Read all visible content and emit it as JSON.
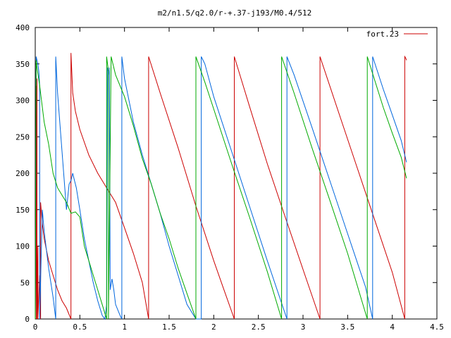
{
  "chart_data": {
    "type": "line",
    "title": "m2/n1.5/q2.0/r-+.37-j193/M0.4/512",
    "xlabel": "",
    "ylabel": "",
    "xlim": [
      0,
      4.5
    ],
    "ylim": [
      0,
      400
    ],
    "x_ticks": [
      {
        "value": 0,
        "label": "0"
      },
      {
        "value": 0.5,
        "label": "0.5"
      },
      {
        "value": 1,
        "label": "1"
      },
      {
        "value": 1.5,
        "label": "1.5"
      },
      {
        "value": 2,
        "label": "2"
      },
      {
        "value": 2.5,
        "label": "2.5"
      },
      {
        "value": 3,
        "label": "3"
      },
      {
        "value": 3.5,
        "label": "3.5"
      },
      {
        "value": 4,
        "label": "4"
      },
      {
        "value": 4.5,
        "label": "4.5"
      }
    ],
    "y_ticks": [
      {
        "value": 0,
        "label": "0"
      },
      {
        "value": 50,
        "label": "50"
      },
      {
        "value": 100,
        "label": "100"
      },
      {
        "value": 150,
        "label": "150"
      },
      {
        "value": 200,
        "label": "200"
      },
      {
        "value": 250,
        "label": "250"
      },
      {
        "value": 300,
        "label": "300"
      },
      {
        "value": 350,
        "label": "350"
      },
      {
        "value": 400,
        "label": "400"
      }
    ],
    "grid": false,
    "legend": {
      "position": "top-right",
      "entries": [
        {
          "label": "fort.23",
          "color": "#cc0000"
        }
      ]
    },
    "series": [
      {
        "name": "fort.23",
        "color": "#cc0000",
        "x": [
          0.0,
          0.01,
          0.01,
          0.02,
          0.02,
          0.03,
          0.03,
          0.05,
          0.06,
          0.06,
          0.08,
          0.1,
          0.15,
          0.2,
          0.25,
          0.3,
          0.35,
          0.4,
          0.4,
          0.42,
          0.45,
          0.5,
          0.6,
          0.7,
          0.8,
          0.9,
          1.0,
          1.1,
          1.2,
          1.27,
          1.27,
          1.4,
          1.6,
          1.8,
          2.0,
          2.1,
          2.23,
          2.23,
          2.4,
          2.6,
          2.8,
          3.0,
          3.19,
          3.19,
          3.4,
          3.6,
          3.8,
          4.0,
          4.14,
          4.14,
          4.15,
          4.16
        ],
        "y": [
          0,
          320,
          0,
          330,
          0,
          100,
          0,
          60,
          0,
          160,
          130,
          110,
          80,
          60,
          40,
          25,
          15,
          0,
          365,
          310,
          285,
          260,
          225,
          200,
          180,
          160,
          125,
          90,
          50,
          0,
          360,
          310,
          235,
          155,
          80,
          45,
          0,
          360,
          292,
          213,
          140,
          68,
          0,
          360,
          283,
          210,
          137,
          64,
          0,
          360,
          358,
          355
        ]
      },
      {
        "name": "",
        "color": "#0066dd",
        "x": [
          0.0,
          0.01,
          0.02,
          0.03,
          0.04,
          0.05,
          0.05,
          0.08,
          0.1,
          0.15,
          0.2,
          0.23,
          0.23,
          0.25,
          0.3,
          0.35,
          0.38,
          0.4,
          0.42,
          0.44,
          0.46,
          0.5,
          0.55,
          0.6,
          0.65,
          0.7,
          0.75,
          0.78,
          0.8,
          0.81,
          0.83,
          0.83,
          0.84,
          0.86,
          0.88,
          0.9,
          0.95,
          0.97,
          0.97,
          1.0,
          1.05,
          1.1,
          1.2,
          1.3,
          1.4,
          1.5,
          1.6,
          1.7,
          1.8,
          1.86,
          1.86,
          1.9,
          2.0,
          2.2,
          2.4,
          2.6,
          2.82,
          2.82,
          2.9,
          3.1,
          3.3,
          3.5,
          3.7,
          3.78,
          3.78,
          3.9,
          4.0,
          4.1,
          4.16
        ],
        "y": [
          0,
          360,
          355,
          350,
          340,
          320,
          0,
          150,
          120,
          70,
          30,
          0,
          360,
          310,
          230,
          150,
          185,
          190,
          200,
          190,
          180,
          150,
          110,
          80,
          50,
          25,
          5,
          0,
          20,
          345,
          335,
          345,
          40,
          55,
          40,
          20,
          5,
          0,
          360,
          330,
          300,
          270,
          225,
          185,
          145,
          100,
          60,
          20,
          0,
          0,
          360,
          350,
          305,
          230,
          155,
          80,
          0,
          360,
          335,
          263,
          190,
          117,
          44,
          0,
          360,
          315,
          280,
          245,
          215
        ]
      },
      {
        "name": "",
        "color": "#00aa00",
        "x": [
          0.0,
          0.01,
          0.02,
          0.05,
          0.1,
          0.15,
          0.2,
          0.25,
          0.3,
          0.35,
          0.4,
          0.45,
          0.5,
          0.55,
          0.6,
          0.65,
          0.7,
          0.75,
          0.8,
          0.8,
          0.82,
          0.82,
          0.85,
          0.9,
          1.0,
          1.1,
          1.2,
          1.3,
          1.4,
          1.5,
          1.6,
          1.7,
          1.8,
          1.8,
          1.9,
          2.0,
          2.2,
          2.4,
          2.6,
          2.76,
          2.76,
          2.9,
          3.1,
          3.3,
          3.5,
          3.72,
          3.72,
          3.9,
          4.0,
          4.1,
          4.16
        ],
        "y": [
          0,
          355,
          345,
          320,
          270,
          240,
          200,
          180,
          170,
          160,
          145,
          147,
          140,
          100,
          80,
          60,
          40,
          20,
          0,
          360,
          340,
          0,
          360,
          335,
          305,
          265,
          220,
          185,
          145,
          110,
          70,
          35,
          0,
          360,
          325,
          288,
          213,
          140,
          65,
          0,
          360,
          310,
          235,
          163,
          90,
          0,
          360,
          290,
          255,
          222,
          193
        ]
      }
    ]
  }
}
